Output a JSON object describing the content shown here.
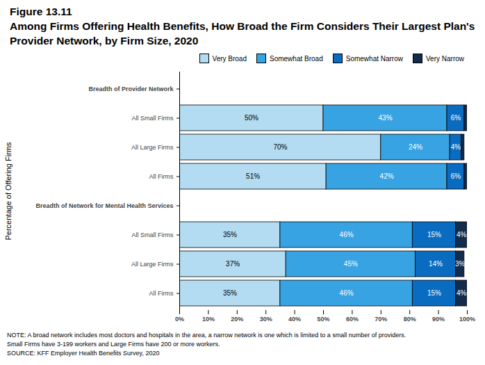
{
  "chart_data": {
    "type": "bar",
    "orientation": "horizontal",
    "stacked": true,
    "data_labels": true,
    "title": [
      "Figure 13.11",
      "Among Firms Offering Health Benefits, How Broad the Firm Considers Their Largest Plan's Provider Network, by Firm Size, 2020"
    ],
    "y_label": "Percentage of Offering Firms",
    "categories": [
      "Breadth of Provider Network",
      "All Small Firms",
      "All Large Firms",
      "All Firms",
      "Breadth of Network for Mental Health Services",
      "All Small Firms",
      "All Large Firms",
      "All Firms"
    ],
    "series": [
      {
        "name": "Very Broad",
        "color": "#b3dcf2",
        "values": [
          null,
          50,
          70,
          51,
          null,
          35,
          37,
          35
        ],
        "value_labels": [
          null,
          "50%",
          "70%",
          "51%",
          null,
          "35%",
          "37%",
          "35%"
        ]
      },
      {
        "name": "Somewhat Broad",
        "color": "#37a3e3",
        "values": [
          null,
          43,
          24,
          42,
          null,
          46,
          45,
          46
        ],
        "value_labels": [
          null,
          "43%",
          "24%",
          "42%",
          null,
          "46%",
          "45%",
          "46%"
        ]
      },
      {
        "name": "Somewhat Narrow",
        "color": "#0a6cc0",
        "values": [
          null,
          6,
          4,
          6,
          null,
          15,
          14,
          15
        ],
        "value_labels": [
          null,
          "6%",
          "4%",
          "6%",
          null,
          "15%",
          "14%",
          "15%"
        ]
      },
      {
        "name": "Very Narrow",
        "color": "#142b4c",
        "values": [
          null,
          1,
          1,
          1,
          null,
          4,
          3,
          4
        ],
        "value_labels": [
          null,
          null,
          null,
          null,
          null,
          "4%",
          "3%",
          "4%"
        ]
      }
    ],
    "xlim": [
      0,
      100
    ],
    "xticks": [
      {
        "value": 0,
        "label": "0%"
      },
      {
        "value": 10,
        "label": "10%"
      },
      {
        "value": 20,
        "label": "20%"
      },
      {
        "value": 30,
        "label": "30%"
      },
      {
        "value": 40,
        "label": "40%"
      },
      {
        "value": 50,
        "label": "50%"
      },
      {
        "value": 60,
        "label": "60%"
      },
      {
        "value": 70,
        "label": "70%"
      },
      {
        "value": 80,
        "label": "80%"
      },
      {
        "value": 90,
        "label": "90%"
      },
      {
        "value": 100,
        "label": "100%"
      }
    ],
    "grid": false,
    "legend": "top-right",
    "notes": [
      "NOTE: A broad network includes most doctors and hospitals in the area, a narrow network is one which is limited to a small number of providers.",
      "Small Firms have 3-199 workers and Large Firms have 200 or more workers.",
      "SOURCE: KFF Employer Health Benefits Survey, 2020"
    ]
  }
}
